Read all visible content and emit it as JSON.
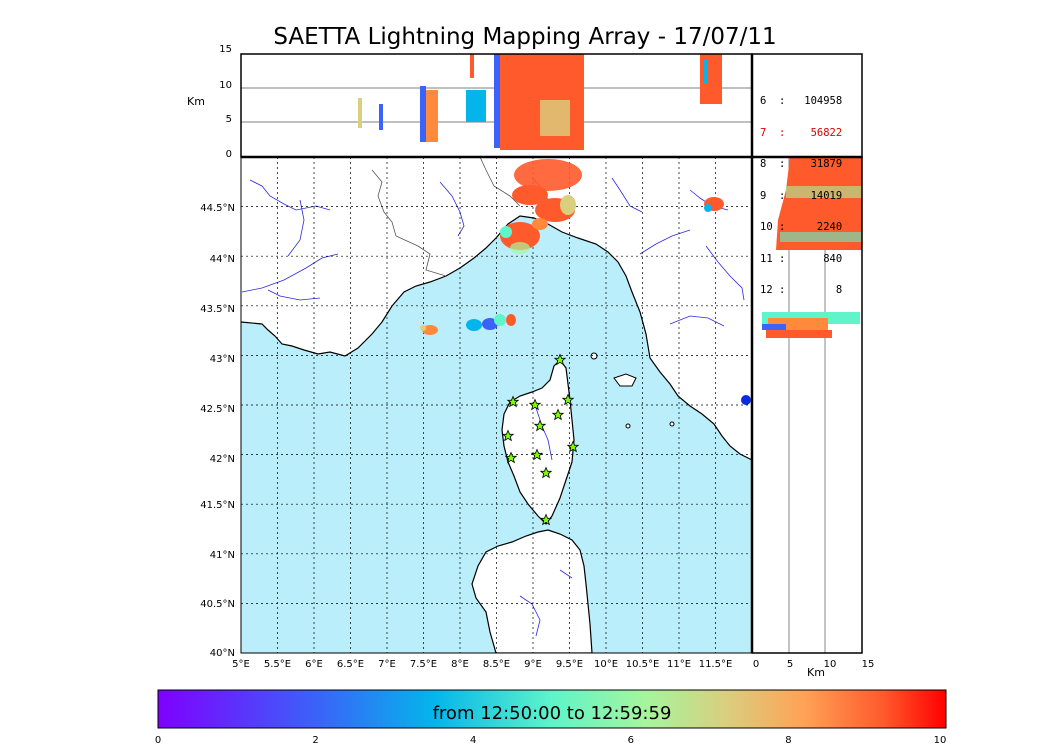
{
  "title": "SAETTA Lightning Mapping Array - 17/07/11",
  "top_panel": {
    "ylabel": "Km",
    "yticks": [
      "0",
      "5",
      "10",
      "15"
    ]
  },
  "side_panel": {
    "xlabel": "Km",
    "xticks": [
      "0",
      "5",
      "10",
      "15"
    ]
  },
  "map": {
    "lat_labels": [
      "40°N",
      "40.5°N",
      "41°N",
      "41.5°N",
      "42°N",
      "42.5°N",
      "43°N",
      "43.5°N",
      "44°N",
      "44.5°N"
    ],
    "lon_labels": [
      "5°E",
      "5.5°E",
      "6°E",
      "6.5°E",
      "7°E",
      "7.5°E",
      "8°E",
      "8.5°E",
      "9°E",
      "9.5°E",
      "10°E",
      "10.5°E",
      "11°E",
      "11.5°E"
    ],
    "sea_color": "#b9eefa",
    "land_color": "#ffffff",
    "river_color": "#2a2ae0",
    "station_icon": "star-icon",
    "station_color": "#7cfc00"
  },
  "stats": [
    {
      "label": "6  :   104958",
      "highlight": false
    },
    {
      "label": "7  :    56822",
      "highlight": true
    },
    {
      "label": "8  :    31879",
      "highlight": false
    },
    {
      "label": "9  :    14019",
      "highlight": false
    },
    {
      "label": "10 :     2240",
      "highlight": false
    },
    {
      "label": "11 :      840",
      "highlight": false
    },
    {
      "label": "12 :        8",
      "highlight": false
    }
  ],
  "colorbar": {
    "label": "from 12:50:00 to 12:59:59",
    "ticks": [
      "0",
      "2",
      "4",
      "6",
      "8",
      "10"
    ]
  }
}
